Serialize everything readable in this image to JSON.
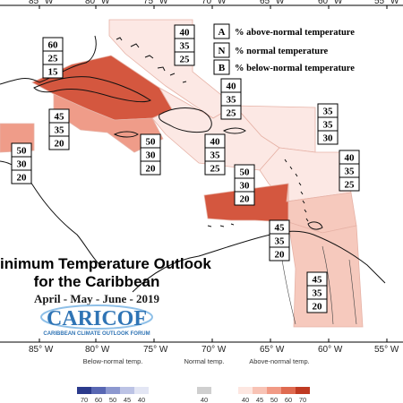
{
  "longitudes": [
    "85° W",
    "80° W",
    "75° W",
    "70° W",
    "65° W",
    "60° W",
    "55° W"
  ],
  "title": {
    "line1": "inimum Temperature Outlook",
    "line2": "for the Caribbean"
  },
  "season": "April - May - June - 2019",
  "logo": {
    "name": "CARICOF",
    "tagline": "CARIBBEAN CLIMATE OUTLOOK FORUM"
  },
  "legend": [
    {
      "key": "A",
      "text": "% above-normal temperature"
    },
    {
      "key": "N",
      "text": "% normal temperature"
    },
    {
      "key": "B",
      "text": "% below-normal temperature"
    }
  ],
  "colors": {
    "very_light": "#fce8e4",
    "light": "#f6c9bd",
    "medium": "#ef9c89",
    "strong": "#d4573f",
    "land": "#ffffff",
    "coast": "#111111"
  },
  "regions": [
    {
      "id": "cuba-jamaica",
      "level": "strong"
    },
    {
      "id": "bahamas",
      "level": "very_light"
    },
    {
      "id": "west-central",
      "level": "medium"
    },
    {
      "id": "belize-yucatan",
      "level": "medium"
    },
    {
      "id": "hispaniola",
      "level": "very_light"
    },
    {
      "id": "north-leewards",
      "level": "very_light"
    },
    {
      "id": "leewards",
      "level": "very_light"
    },
    {
      "id": "south-central",
      "level": "strong"
    },
    {
      "id": "windwards",
      "level": "light"
    },
    {
      "id": "guianas",
      "level": "light"
    }
  ],
  "forecast_boxes": [
    {
      "id": "cuba",
      "values": [
        "60",
        "25",
        "15"
      ]
    },
    {
      "id": "bahamas",
      "values": [
        "40",
        "35",
        "25"
      ]
    },
    {
      "id": "cayman",
      "values": [
        "45",
        "35",
        "20"
      ]
    },
    {
      "id": "belize",
      "values": [
        "50",
        "30",
        "20"
      ]
    },
    {
      "id": "jamaica",
      "values": [
        "50",
        "30",
        "20"
      ]
    },
    {
      "id": "haiti",
      "values": [
        "40",
        "35",
        "25"
      ]
    },
    {
      "id": "hispaniola",
      "values": [
        "40",
        "35",
        "25"
      ]
    },
    {
      "id": "leewards-north",
      "values": [
        "35",
        "35",
        "30"
      ]
    },
    {
      "id": "leewards",
      "values": [
        "40",
        "35",
        "25"
      ]
    },
    {
      "id": "south-central",
      "values": [
        "50",
        "30",
        "20"
      ]
    },
    {
      "id": "trinidad",
      "values": [
        "45",
        "35",
        "20"
      ]
    },
    {
      "id": "guianas",
      "values": [
        "45",
        "35",
        "20"
      ]
    }
  ],
  "scale": {
    "below_title": "Below-normal temp.",
    "normal_title": "Normal temp.",
    "above_title": "Above-normal temp.",
    "below_ticks": [
      "70",
      "60",
      "50",
      "45",
      "40"
    ],
    "normal_ticks": [
      "40"
    ],
    "above_ticks": [
      "40",
      "45",
      "50",
      "60",
      "70"
    ],
    "below_colors": [
      "#2b3a8c",
      "#5867b3",
      "#8c98cf",
      "#bcc3e5",
      "#e3e6f4"
    ],
    "normal_color": "#cfcfcf",
    "above_colors": [
      "#fde7e1",
      "#f8c3b5",
      "#f19a85",
      "#df6a50",
      "#bf3a22"
    ]
  }
}
